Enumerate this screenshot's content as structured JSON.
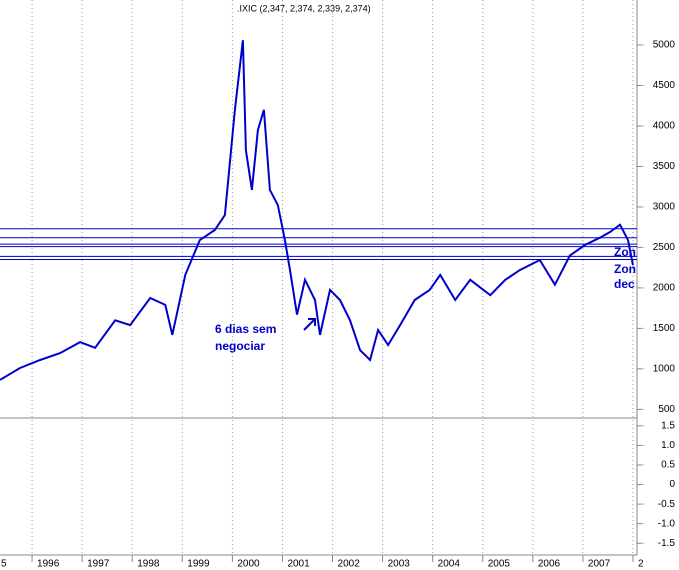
{
  "chart_data": [
    {
      "type": "line",
      "title": ".IXIC (2,347, 2,374, 2,339, 2,374)",
      "x": [
        1995.36,
        1995.76,
        1996.16,
        1996.56,
        1996.96,
        1997.26,
        1997.66,
        1997.96,
        1998.36,
        1998.66,
        1998.8,
        1999.06,
        1999.35,
        1999.65,
        1999.85,
        2000.05,
        2000.21,
        2000.27,
        2000.39,
        2000.51,
        2000.63,
        2000.75,
        2000.91,
        2001.05,
        2001.15,
        2001.29,
        2001.45,
        2001.65,
        2001.75,
        2001.95,
        2002.15,
        2002.35,
        2002.55,
        2002.75,
        2002.91,
        2003.11,
        2003.35,
        2003.64,
        2003.94,
        2004.15,
        2004.45,
        2004.75,
        2005.15,
        2005.45,
        2005.74,
        2006.14,
        2006.44,
        2006.74,
        2007.04,
        2007.34,
        2007.54,
        2007.74,
        2007.9,
        2008.0
      ],
      "series": [
        {
          "color": "#0000cc",
          "values": [
            864,
            1010,
            1110,
            1195,
            1330,
            1260,
            1600,
            1540,
            1875,
            1790,
            1420,
            2160,
            2590,
            2715,
            2900,
            4200,
            5060,
            3700,
            3210,
            3950,
            4200,
            3210,
            3020,
            2590,
            2220,
            1670,
            2100,
            1850,
            1420,
            1975,
            1850,
            1600,
            1230,
            1110,
            1480,
            1295,
            1540,
            1850,
            1975,
            2160,
            1850,
            2100,
            1910,
            2100,
            2220,
            2345,
            2040,
            2400,
            2530,
            2620,
            2690,
            2780,
            2590,
            2280
          ]
        }
      ],
      "reference_lines": [
        2730,
        2620,
        2540,
        2510,
        2390,
        2350
      ],
      "reference_color": "#0000cc",
      "annotations": [
        "6 dias sem",
        "negociar",
        "Zon",
        "Zon",
        "dec"
      ],
      "xlim": [
        1995.36,
        2008.08
      ],
      "xticks": [
        {
          "value": 1995,
          "label": "5"
        },
        1996,
        1997,
        1998,
        1999,
        2000,
        2001,
        2002,
        2003,
        2004,
        2005,
        2006,
        2007,
        {
          "value": 2008,
          "label": "2"
        }
      ],
      "ylim": [
        393,
        5556
      ],
      "yticks": [
        500,
        1000,
        1500,
        2000,
        2500,
        3000,
        3500,
        4000,
        4500,
        5000
      ],
      "grid": true
    },
    {
      "type": "line",
      "ylim": [
        -1.8,
        1.7
      ],
      "yticks": [
        1.5,
        {
          "value": 1,
          "label": "1.0"
        },
        0.5,
        0,
        -0.5,
        {
          "value": -1,
          "label": "-1.0"
        },
        -1.5
      ],
      "grid": true
    }
  ]
}
